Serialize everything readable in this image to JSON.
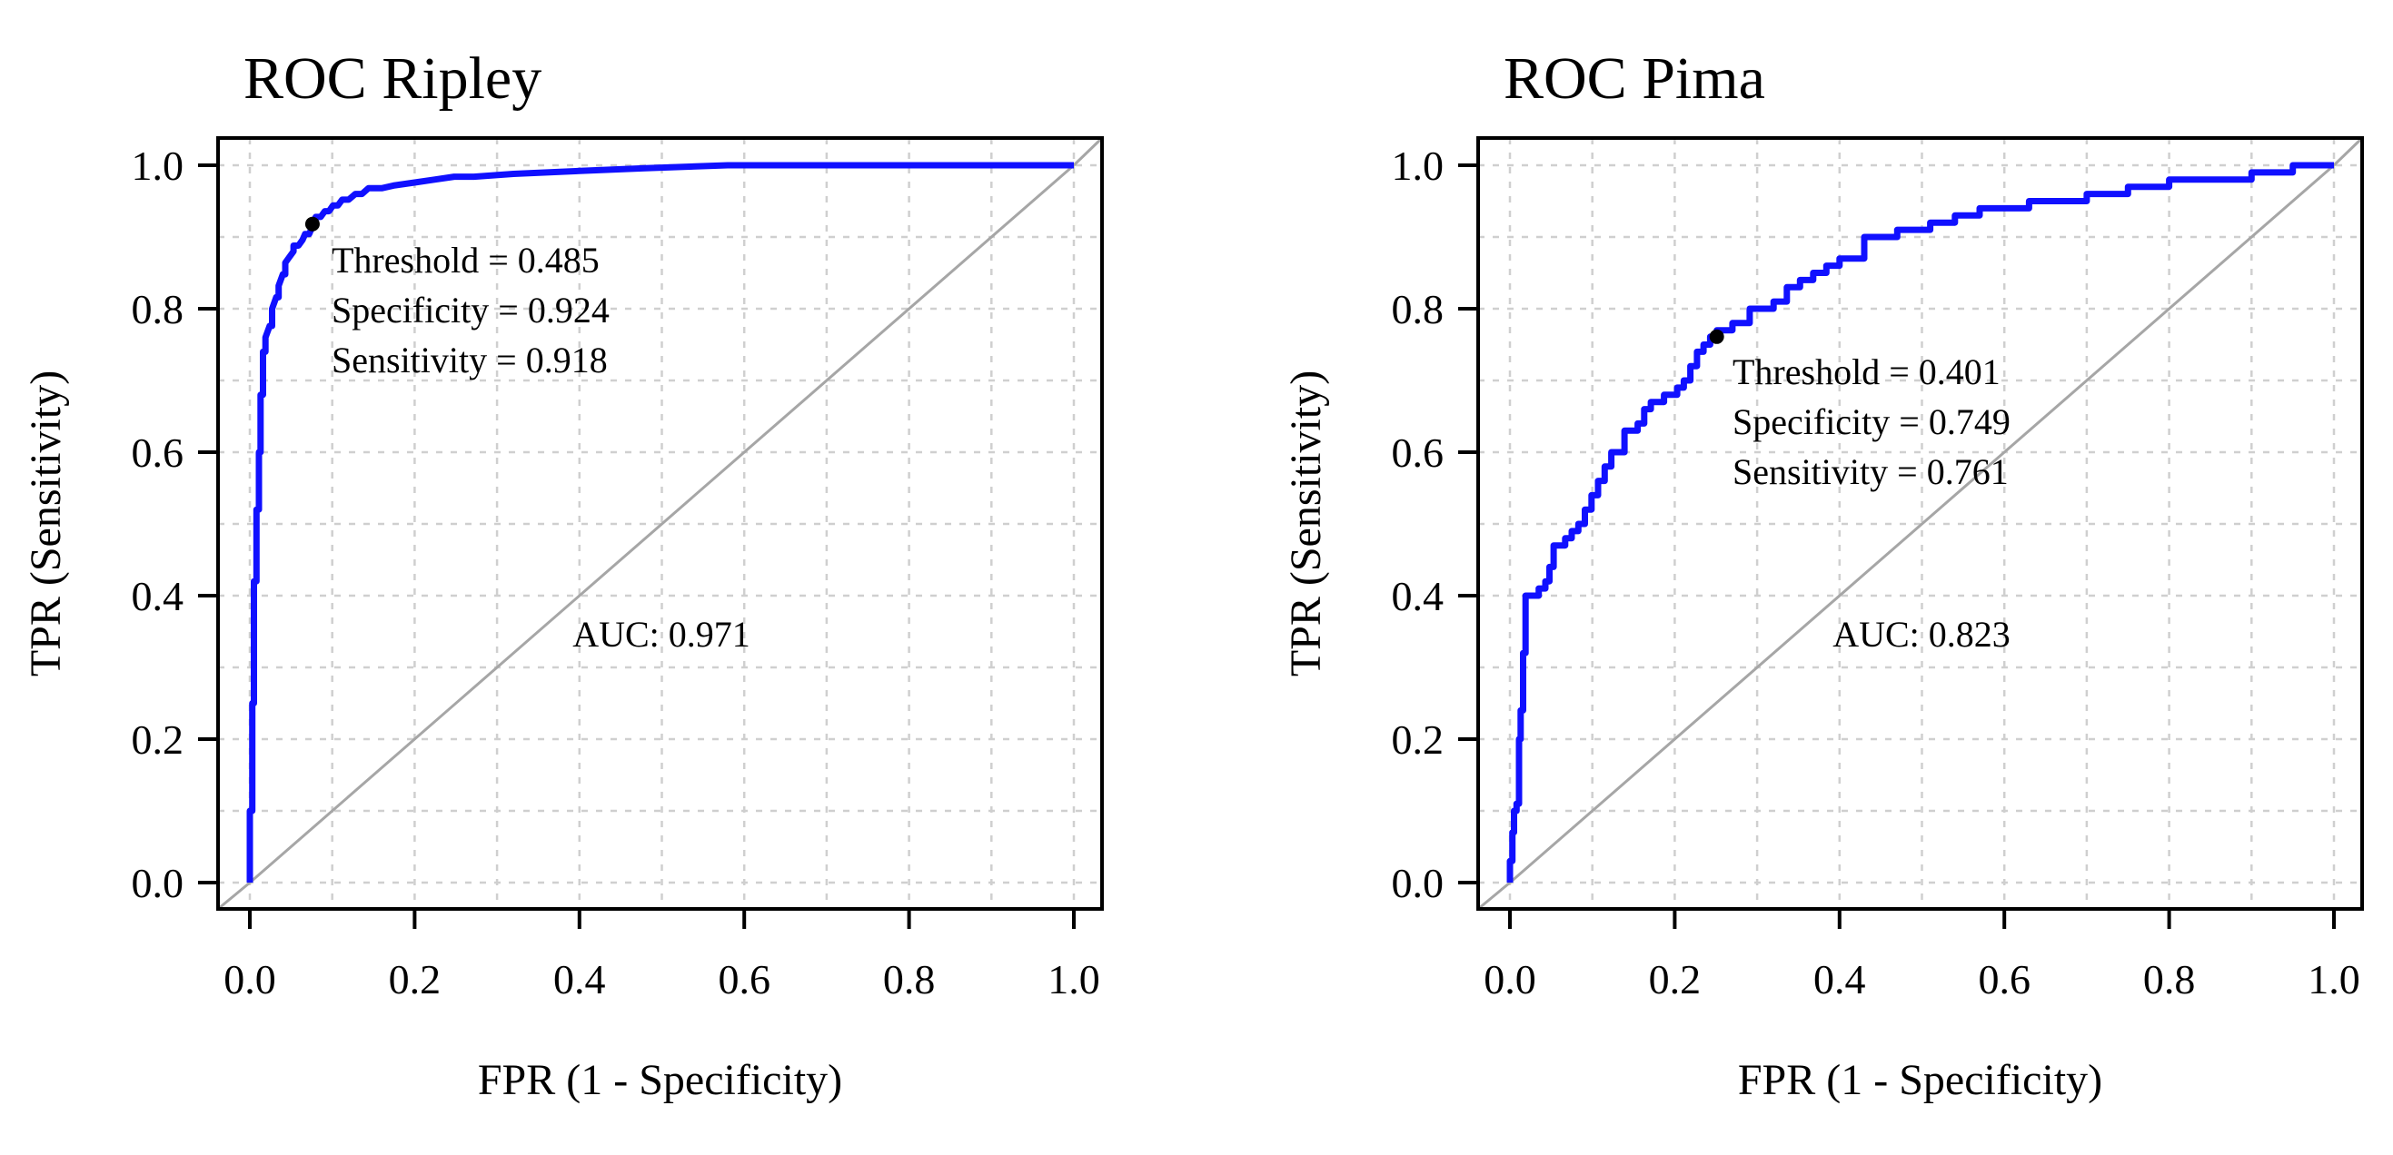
{
  "chart_data": [
    {
      "type": "line",
      "title": "ROC Ripley",
      "xlabel": "FPR (1 - Specificity)",
      "ylabel": "TPR (Sensitivity)",
      "xlim": [
        0,
        1
      ],
      "ylim": [
        0,
        1
      ],
      "x_ticks": [
        "0.0",
        "0.2",
        "0.4",
        "0.6",
        "0.8",
        "1.0"
      ],
      "y_ticks": [
        "0.0",
        "0.2",
        "0.4",
        "0.6",
        "0.8",
        "1.0"
      ],
      "grid": true,
      "line_color": "#1010ff",
      "diagonal_color": "#a6a6a6",
      "series": [
        {
          "name": "ROC",
          "x": [
            0,
            0,
            0.003,
            0.003,
            0.005,
            0.005,
            0.008,
            0.008,
            0.011,
            0.011,
            0.013,
            0.013,
            0.016,
            0.016,
            0.019,
            0.019,
            0.024,
            0.027,
            0.027,
            0.032,
            0.035,
            0.035,
            0.04,
            0.043,
            0.043,
            0.048,
            0.053,
            0.053,
            0.059,
            0.064,
            0.067,
            0.072,
            0.075,
            0.075,
            0.08,
            0.086,
            0.091,
            0.096,
            0.101,
            0.107,
            0.112,
            0.12,
            0.128,
            0.136,
            0.144,
            0.16,
            0.176,
            0.2,
            0.224,
            0.248,
            0.272,
            0.32,
            0.4,
            0.48,
            0.58,
            0.6,
            0.8,
            1.0
          ],
          "y": [
            0,
            0.1,
            0.1,
            0.25,
            0.25,
            0.42,
            0.42,
            0.52,
            0.52,
            0.6,
            0.6,
            0.68,
            0.68,
            0.74,
            0.74,
            0.76,
            0.776,
            0.776,
            0.8,
            0.816,
            0.816,
            0.832,
            0.848,
            0.848,
            0.864,
            0.872,
            0.88,
            0.888,
            0.888,
            0.896,
            0.904,
            0.904,
            0.912,
            0.918,
            0.928,
            0.928,
            0.936,
            0.936,
            0.944,
            0.944,
            0.952,
            0.952,
            0.96,
            0.96,
            0.968,
            0.968,
            0.972,
            0.976,
            0.98,
            0.984,
            0.984,
            0.988,
            0.992,
            0.996,
            1.0,
            1.0,
            1.0,
            1.0
          ]
        }
      ],
      "optimal_point": {
        "x": 0.076,
        "y": 0.918
      },
      "annotations": [
        "Threshold = 0.485",
        "Specificity = 0.924",
        "Sensitivity = 0.918"
      ],
      "auc_label": "AUC: 0.971"
    },
    {
      "type": "line",
      "title": "ROC Pima",
      "xlabel": "FPR (1 - Specificity)",
      "ylabel": "TPR (Sensitivity)",
      "xlim": [
        0,
        1
      ],
      "ylim": [
        0,
        1
      ],
      "x_ticks": [
        "0.0",
        "0.2",
        "0.4",
        "0.6",
        "0.8",
        "1.0"
      ],
      "y_ticks": [
        "0.0",
        "0.2",
        "0.4",
        "0.6",
        "0.8",
        "1.0"
      ],
      "grid": true,
      "line_color": "#1010ff",
      "diagonal_color": "#a6a6a6",
      "series": [
        {
          "name": "ROC",
          "x": [
            0,
            0,
            0.003,
            0.003,
            0.005,
            0.005,
            0.008,
            0.008,
            0.011,
            0.011,
            0.013,
            0.013,
            0.016,
            0.016,
            0.019,
            0.019,
            0.035,
            0.035,
            0.043,
            0.043,
            0.048,
            0.048,
            0.053,
            0.053,
            0.067,
            0.067,
            0.075,
            0.075,
            0.083,
            0.083,
            0.091,
            0.091,
            0.099,
            0.099,
            0.107,
            0.107,
            0.115,
            0.115,
            0.123,
            0.123,
            0.139,
            0.139,
            0.155,
            0.155,
            0.163,
            0.163,
            0.171,
            0.171,
            0.187,
            0.187,
            0.203,
            0.203,
            0.211,
            0.211,
            0.219,
            0.219,
            0.227,
            0.227,
            0.235,
            0.235,
            0.243,
            0.243,
            0.251,
            0.251,
            0.27,
            0.27,
            0.291,
            0.291,
            0.32,
            0.32,
            0.336,
            0.336,
            0.352,
            0.352,
            0.368,
            0.368,
            0.384,
            0.384,
            0.4,
            0.4,
            0.43,
            0.43,
            0.47,
            0.47,
            0.51,
            0.51,
            0.54,
            0.54,
            0.57,
            0.57,
            0.63,
            0.63,
            0.7,
            0.7,
            0.75,
            0.75,
            0.8,
            0.8,
            0.9,
            0.9,
            0.95,
            0.95,
            1.0
          ],
          "y": [
            0,
            0.03,
            0.03,
            0.07,
            0.07,
            0.1,
            0.1,
            0.11,
            0.11,
            0.2,
            0.2,
            0.24,
            0.24,
            0.32,
            0.32,
            0.4,
            0.4,
            0.41,
            0.41,
            0.42,
            0.42,
            0.44,
            0.44,
            0.47,
            0.47,
            0.48,
            0.48,
            0.49,
            0.49,
            0.5,
            0.5,
            0.52,
            0.52,
            0.54,
            0.54,
            0.56,
            0.56,
            0.58,
            0.58,
            0.6,
            0.6,
            0.63,
            0.63,
            0.64,
            0.64,
            0.66,
            0.66,
            0.67,
            0.67,
            0.68,
            0.68,
            0.69,
            0.69,
            0.7,
            0.7,
            0.72,
            0.72,
            0.74,
            0.74,
            0.75,
            0.75,
            0.761,
            0.761,
            0.77,
            0.77,
            0.78,
            0.78,
            0.8,
            0.8,
            0.81,
            0.81,
            0.83,
            0.83,
            0.84,
            0.84,
            0.85,
            0.85,
            0.86,
            0.86,
            0.87,
            0.87,
            0.9,
            0.9,
            0.91,
            0.91,
            0.92,
            0.92,
            0.93,
            0.93,
            0.94,
            0.94,
            0.95,
            0.95,
            0.96,
            0.96,
            0.97,
            0.97,
            0.98,
            0.98,
            0.99,
            0.99,
            1.0,
            1.0
          ]
        }
      ],
      "optimal_point": {
        "x": 0.251,
        "y": 0.761
      },
      "annotations": [
        "Threshold = 0.401",
        "Specificity = 0.749",
        "Sensitivity = 0.761"
      ],
      "auc_label": "AUC: 0.823"
    }
  ]
}
